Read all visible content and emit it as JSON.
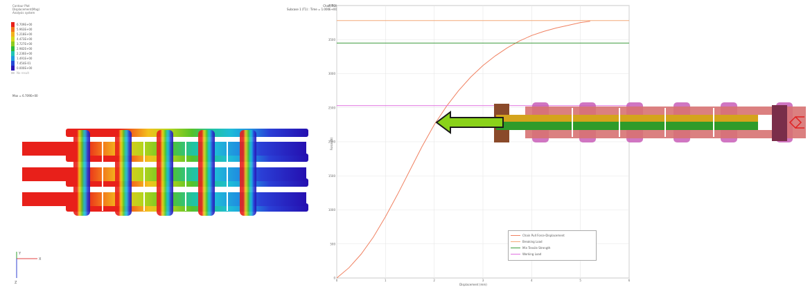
{
  "contour": {
    "header_lines": [
      "Contour Plot",
      "Displacement(Mag)",
      "Analysis system"
    ],
    "legend_values": [
      "6.709E+00",
      "5.963E+00",
      "5.218E+00",
      "4.473E+00",
      "3.727E+00",
      "2.982E+00",
      "2.236E+00",
      "1.491E+00",
      "7.454E-01",
      "0.000E+00"
    ],
    "legend_colors": [
      "#e8201a",
      "#f2741b",
      "#f3b21d",
      "#d6d81b",
      "#8ccc1f",
      "#2fbb3a",
      "#1fc4b6",
      "#1f9be0",
      "#2349d8",
      "#2b18b8",
      "#0000a0"
    ],
    "no_result": "No result",
    "max_label": "Max = 6.709E+00"
  },
  "model_info": {
    "line1": "Chain Pull",
    "line2": "Subcase 1 (T1) : Time = 1.000E+00"
  },
  "triad": {
    "x_label": "X",
    "y_label": "Y",
    "z_label": "Z"
  },
  "chart_data": {
    "type": "line",
    "xlim": [
      0,
      6
    ],
    "ylim": [
      0,
      4000
    ],
    "x_ticks": [
      "0",
      "1",
      "2",
      "3",
      "4",
      "5",
      "6"
    ],
    "y_ticks": [
      "0",
      "500",
      "1000",
      "1500",
      "2000",
      "2500",
      "3000",
      "3500",
      "4000"
    ],
    "ylabel": "Force (N)",
    "xlabel": "Displacement (mm)",
    "grid": true,
    "legend_position": "bottom-right",
    "series": [
      {
        "name": "Chain Pull Force-Displacement",
        "color": "#f08060",
        "x": [
          0,
          0.25,
          0.5,
          0.75,
          1,
          1.25,
          1.5,
          1.75,
          2,
          2.25,
          2.5,
          2.75,
          3,
          3.25,
          3.5,
          3.75,
          4,
          4.25,
          4.5,
          4.75,
          5,
          5.2
        ],
        "y": [
          0,
          150,
          350,
          600,
          900,
          1230,
          1580,
          1930,
          2250,
          2520,
          2750,
          2950,
          3120,
          3260,
          3380,
          3480,
          3560,
          3620,
          3670,
          3710,
          3750,
          3770
        ]
      },
      {
        "name": "Breaking Load",
        "color": "#f4a878",
        "x": [
          0,
          6
        ],
        "y": [
          3780,
          3780
        ]
      },
      {
        "name": "Min Tensile Strength",
        "color": "#3a9a3a",
        "x": [
          0,
          6
        ],
        "y": [
          3450,
          3450
        ]
      },
      {
        "name": "Working Load",
        "color": "#e070e0",
        "x": [
          0,
          6
        ],
        "y": [
          2530,
          2530
        ]
      }
    ]
  }
}
